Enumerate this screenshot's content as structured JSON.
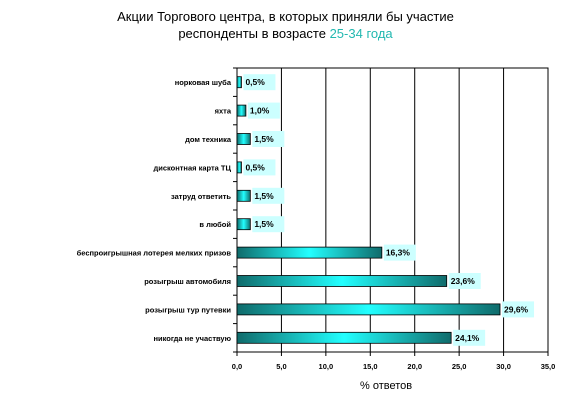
{
  "chart_data": {
    "type": "bar",
    "orientation": "horizontal",
    "title_line1": "Акции Торгового центра, в которых приняли бы участие",
    "title_line2_prefix": "респонденты в возрасте ",
    "title_line2_accent": "25-34 года",
    "xlabel": "% ответов",
    "ylabel": "",
    "xlim": [
      0,
      35
    ],
    "x_ticks": [
      "0,0",
      "5,0",
      "10,0",
      "15,0",
      "20,0",
      "25,0",
      "30,0",
      "35,0"
    ],
    "grid": true,
    "categories": [
      "норковая шуба",
      "яхта",
      "дом техника",
      "дисконтная карта ТЦ",
      "затруд ответить",
      "в любой",
      "беспроигрышная лотерея мелких призов",
      "розыгрыш автомобиля",
      "розыгрыш тур путевки",
      "никогда не участвую"
    ],
    "values": [
      0.5,
      1.0,
      1.5,
      0.5,
      1.5,
      1.5,
      16.3,
      23.6,
      29.6,
      24.1
    ],
    "value_labels": [
      "0,5%",
      "1,0%",
      "1,5%",
      "0,5%",
      "1,5%",
      "1,5%",
      "16,3%",
      "23,6%",
      "29,6%",
      "24,1%"
    ],
    "colors": {
      "bar_light": "#22ffff",
      "bar_dark": "#0f6b6b",
      "label_bg": "#ccffff",
      "title_accent": "#22b8b0"
    }
  }
}
